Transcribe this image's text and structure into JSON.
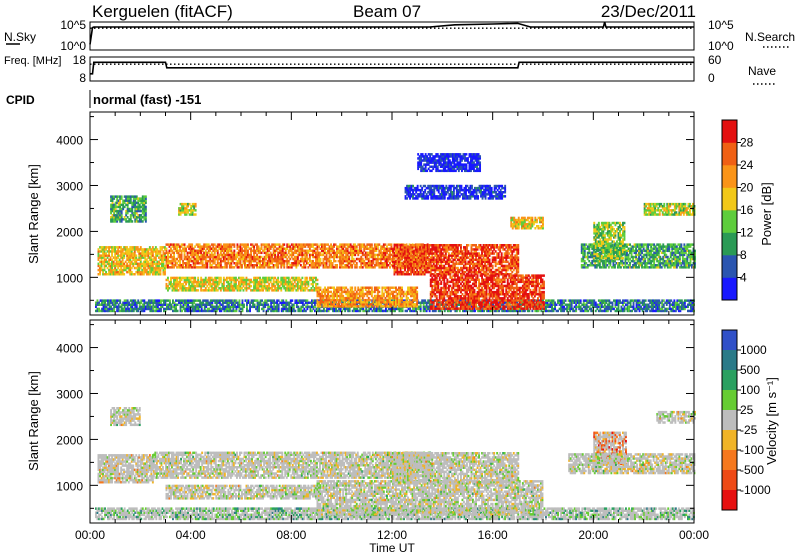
{
  "header": {
    "station": "Kerguelen (fitACF)",
    "beam": "Beam 07",
    "date": "23/Dec/2011"
  },
  "chart_data": [
    {
      "type": "line",
      "panel": "noise",
      "left_label": "N.Sky",
      "right_label": "N.Search",
      "left_ticks": [
        "10^5",
        "10^0"
      ],
      "right_ticks": [
        "10^5",
        "10^0"
      ],
      "x_range": [
        "00:00",
        "24:00"
      ],
      "series": [
        {
          "name": "N.Sky",
          "style": "solid",
          "x": [
            0.0,
            0.1,
            0.15,
            13.5,
            14.5,
            16.0,
            17.0,
            17.5,
            20.4,
            20.45,
            20.5,
            24.0
          ],
          "y": [
            0.2,
            0.8,
            0.82,
            0.82,
            0.9,
            0.93,
            0.95,
            0.82,
            0.82,
            1.0,
            0.82,
            0.82
          ]
        },
        {
          "name": "N.Search",
          "style": "dotted",
          "x": [
            0.0,
            24.0
          ],
          "y": [
            0.78,
            0.78
          ]
        }
      ]
    },
    {
      "type": "line",
      "panel": "frequency",
      "left_label": "Freq. [MHz]",
      "right_label": "Nave",
      "left_ticks": [
        "18",
        "8"
      ],
      "right_ticks": [
        "60",
        "0"
      ],
      "x_range": [
        "00:00",
        "24:00"
      ],
      "series": [
        {
          "name": "Freq.",
          "style": "solid",
          "x": [
            0.0,
            0.1,
            0.15,
            3.0,
            3.05,
            17.0,
            17.05,
            24.0
          ],
          "y": [
            0.3,
            0.3,
            0.78,
            0.78,
            0.55,
            0.55,
            0.78,
            0.78
          ]
        },
        {
          "name": "Nave",
          "style": "dotted",
          "x": [
            0.0,
            24.0
          ],
          "y": [
            0.7,
            0.7
          ]
        }
      ]
    },
    {
      "type": "text",
      "panel": "cpid",
      "label": "CPID",
      "value": "normal (fast) -151"
    },
    {
      "type": "heatmap",
      "panel": "power",
      "ylabel": "Slant Range [km]",
      "y_ticks": [
        "1000",
        "2000",
        "3000",
        "4000"
      ],
      "ylim": [
        180,
        4600
      ],
      "x_range": [
        "00:00",
        "24:00"
      ],
      "colorbar_label": "Power [dB]",
      "colorbar_ticks": [
        "4",
        "8",
        "12",
        "16",
        "20",
        "24",
        "28"
      ],
      "colorbar_colors": [
        "#1818ff",
        "#2a55b0",
        "#2a9a55",
        "#5ecd3c",
        "#f2c818",
        "#fa9418",
        "#f06014",
        "#e41010"
      ],
      "regions": [
        {
          "t0": 0.2,
          "t1": 24.0,
          "r0": 250,
          "r1": 480,
          "level": 0.25
        },
        {
          "t0": 0.3,
          "t1": 3.0,
          "r0": 1050,
          "r1": 1650,
          "level": 0.6
        },
        {
          "t0": 0.8,
          "t1": 2.2,
          "r0": 2200,
          "r1": 2750,
          "level": 0.35
        },
        {
          "t0": 3.0,
          "t1": 13.5,
          "r0": 1200,
          "r1": 1700,
          "level": 0.75
        },
        {
          "t0": 3.0,
          "t1": 9.0,
          "r0": 700,
          "r1": 1000,
          "level": 0.55
        },
        {
          "t0": 9.0,
          "t1": 13.0,
          "r0": 350,
          "r1": 800,
          "level": 0.7
        },
        {
          "t0": 12.0,
          "t1": 17.0,
          "r0": 1050,
          "r1": 1700,
          "level": 0.85
        },
        {
          "t0": 13.5,
          "t1": 18.0,
          "r0": 300,
          "r1": 1050,
          "level": 0.9
        },
        {
          "t0": 16.7,
          "t1": 18.0,
          "r0": 2050,
          "r1": 2300,
          "level": 0.6
        },
        {
          "t0": 19.5,
          "t1": 24.0,
          "r0": 1200,
          "r1": 1700,
          "level": 0.35
        },
        {
          "t0": 20.0,
          "t1": 21.2,
          "r0": 1400,
          "r1": 2200,
          "level": 0.45
        },
        {
          "t0": 22.0,
          "t1": 24.0,
          "r0": 2350,
          "r1": 2600,
          "level": 0.5
        },
        {
          "t0": 3.5,
          "t1": 4.2,
          "r0": 2350,
          "r1": 2600,
          "level": 0.5
        },
        {
          "t0": 12.5,
          "t1": 16.5,
          "r0": 2700,
          "r1": 3000,
          "level": 0.1
        },
        {
          "t0": 13.0,
          "t1": 15.5,
          "r0": 3300,
          "r1": 3700,
          "level": 0.08
        }
      ]
    },
    {
      "type": "heatmap",
      "panel": "velocity",
      "ylabel": "Slant Range [km]",
      "y_ticks": [
        "1000",
        "2000",
        "3000",
        "4000"
      ],
      "ylim": [
        180,
        4600
      ],
      "xlabel": "Time UT",
      "x_ticks": [
        "00:00",
        "04:00",
        "08:00",
        "12:00",
        "16:00",
        "20:00",
        "00:00"
      ],
      "x_range": [
        "00:00",
        "24:00"
      ],
      "colorbar_label": "Velocity [m s⁻¹]",
      "colorbar_ticks": [
        "1000",
        "500",
        "100",
        "25",
        "-25",
        "-100",
        "-500",
        "-1000"
      ],
      "colorbar_colors": [
        "#3050c8",
        "#2a7a88",
        "#2aa060",
        "#66cc33",
        "#bdbdbd",
        "#f0b428",
        "#f5781e",
        "#ee4a16",
        "#e61010"
      ],
      "regions": [
        {
          "t0": 0.2,
          "t1": 24.0,
          "r0": 250,
          "r1": 480,
          "level": 0.35
        },
        {
          "t0": 0.3,
          "t1": 2.5,
          "r0": 1050,
          "r1": 1650,
          "level": 0.55
        },
        {
          "t0": 2.5,
          "t1": 13.5,
          "r0": 1150,
          "r1": 1700,
          "level": 0.5
        },
        {
          "t0": 3.0,
          "t1": 9.0,
          "r0": 700,
          "r1": 1000,
          "level": 0.5
        },
        {
          "t0": 9.0,
          "t1": 18.0,
          "r0": 350,
          "r1": 1100,
          "level": 0.5
        },
        {
          "t0": 12.0,
          "t1": 17.0,
          "r0": 1050,
          "r1": 1700,
          "level": 0.5
        },
        {
          "t0": 20.0,
          "t1": 21.3,
          "r0": 1450,
          "r1": 2150,
          "level": 0.75
        },
        {
          "t0": 19.0,
          "t1": 24.0,
          "r0": 1250,
          "r1": 1700,
          "level": 0.5
        },
        {
          "t0": 22.5,
          "t1": 24.0,
          "r0": 2350,
          "r1": 2600,
          "level": 0.5
        },
        {
          "t0": 0.8,
          "t1": 2.0,
          "r0": 2300,
          "r1": 2700,
          "level": 0.5
        }
      ]
    }
  ]
}
